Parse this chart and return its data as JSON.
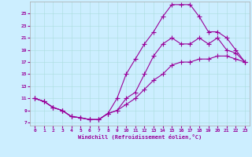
{
  "xlabel": "Windchill (Refroidissement éolien,°C)",
  "bg_color": "#cceeff",
  "line_color": "#990099",
  "xlim": [
    -0.5,
    23.5
  ],
  "ylim": [
    6.5,
    27
  ],
  "xticks": [
    0,
    1,
    2,
    3,
    4,
    5,
    6,
    7,
    8,
    9,
    10,
    11,
    12,
    13,
    14,
    15,
    16,
    17,
    18,
    19,
    20,
    21,
    22,
    23
  ],
  "yticks": [
    7,
    9,
    11,
    13,
    15,
    17,
    19,
    21,
    23,
    25
  ],
  "curve_upper_x": [
    0,
    1,
    2,
    3,
    4,
    5,
    6,
    7,
    8,
    9,
    10,
    11,
    12,
    13,
    14,
    15,
    16,
    17,
    18,
    19,
    20,
    21,
    22,
    23
  ],
  "curve_upper_y": [
    11,
    10.5,
    9.5,
    9,
    8,
    7.8,
    7.5,
    7.5,
    8.5,
    11,
    15,
    17.5,
    20,
    22,
    24.5,
    26.5,
    26.5,
    26.5,
    24.5,
    22,
    22,
    21,
    19,
    17
  ],
  "curve_mid_x": [
    0,
    1,
    2,
    3,
    4,
    5,
    6,
    7,
    8,
    9,
    10,
    11,
    12,
    13,
    14,
    15,
    16,
    17,
    18,
    19,
    20,
    21,
    22,
    23
  ],
  "curve_mid_y": [
    11,
    10.5,
    9.5,
    9,
    8,
    7.8,
    7.5,
    7.5,
    8.5,
    9,
    11,
    12,
    15,
    18,
    20,
    21,
    20,
    20,
    21,
    20,
    21,
    19,
    18.5,
    17
  ],
  "curve_lower_x": [
    0,
    1,
    2,
    3,
    4,
    5,
    6,
    7,
    8,
    9,
    10,
    11,
    12,
    13,
    14,
    15,
    16,
    17,
    18,
    19,
    20,
    21,
    22,
    23
  ],
  "curve_lower_y": [
    11,
    10.5,
    9.5,
    9,
    8,
    7.8,
    7.5,
    7.5,
    8.5,
    9,
    10,
    11,
    12.5,
    14,
    15,
    16.5,
    17,
    17,
    17.5,
    17.5,
    18,
    18,
    17.5,
    17
  ]
}
